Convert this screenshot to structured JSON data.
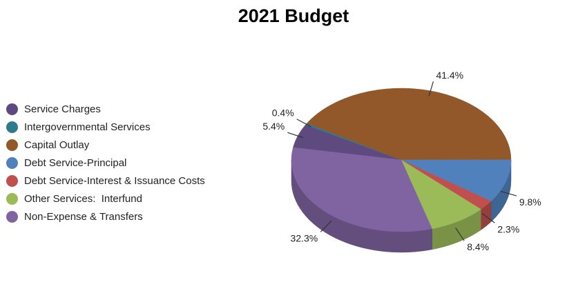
{
  "chart_data": {
    "type": "pie",
    "title": "2021 Budget",
    "legend_position": "left",
    "three_d": true,
    "slices": [
      {
        "label": "Service Charges",
        "value": 5.4,
        "value_label": "5.4%",
        "color": "#5e4a7e"
      },
      {
        "label": "Intergovernmental Services",
        "value": 0.4,
        "value_label": "0.4%",
        "color": "#2e7b8c"
      },
      {
        "label": "Capital Outlay",
        "value": 41.4,
        "value_label": "41.4%",
        "color": "#93582a"
      },
      {
        "label": "Debt Service-Principal",
        "value": 9.8,
        "value_label": "9.8%",
        "color": "#5081bd"
      },
      {
        "label": "Debt Service-Interest & Issuance Costs",
        "value": 2.3,
        "value_label": "2.3%",
        "color": "#c0504d"
      },
      {
        "label": "Other Services:  Interfund",
        "value": 8.4,
        "value_label": "8.4%",
        "color": "#9bbb59"
      },
      {
        "label": "Non-Expense & Transfers",
        "value": 32.3,
        "value_label": "32.3%",
        "color": "#8064a2"
      }
    ]
  }
}
